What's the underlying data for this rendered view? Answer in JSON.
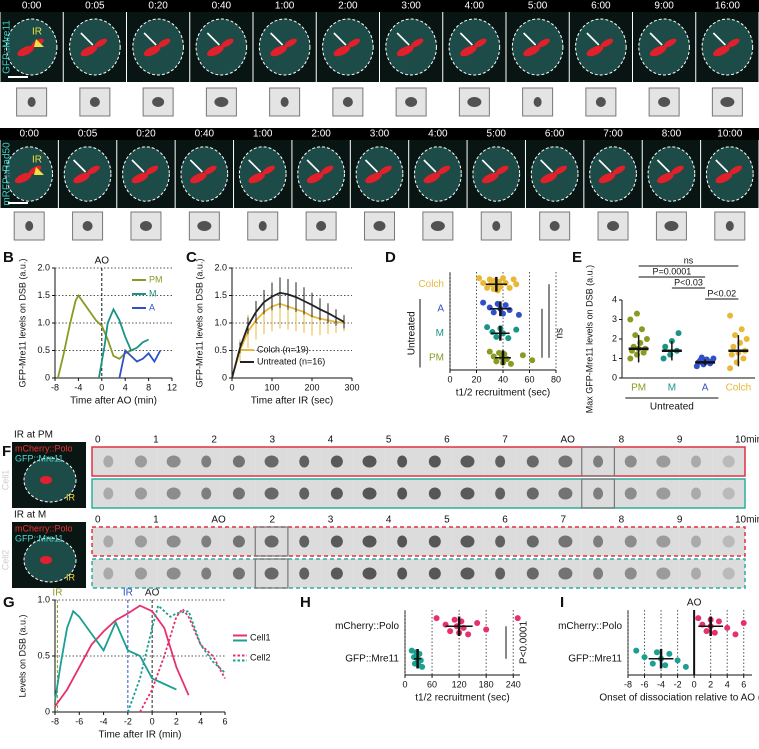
{
  "image_rows": [
    {
      "channel": "GFP::Mre11",
      "annotation": "IR",
      "times": [
        "0:00",
        "0:05",
        "0:20",
        "0:40",
        "1:00",
        "2:00",
        "3:00",
        "4:00",
        "5:00",
        "6:00",
        "9:00",
        "16:00"
      ]
    },
    {
      "channel": "mRFP::Rad50",
      "annotation": "IR",
      "times": [
        "0:00",
        "0:05",
        "0:20",
        "0:40",
        "1:00",
        "2:00",
        "3:00",
        "4:00",
        "5:00",
        "6:00",
        "7:00",
        "8:00",
        "10:00"
      ]
    }
  ],
  "panel_F": {
    "letter": "F",
    "cells": [
      {
        "name": "Cell1",
        "condition": "IR at PM",
        "channels": [
          "mCherry::Polo",
          "GFP::Mre11"
        ],
        "annotation": "IR",
        "timeline": [
          "0",
          "1",
          "2",
          "3",
          "4",
          "5",
          "6",
          "7",
          "AO",
          "8",
          "9",
          "10min"
        ]
      },
      {
        "name": "Cell2",
        "condition": "IR at M",
        "channels": [
          "mCherry::Polo",
          "GFP::Mre11"
        ],
        "annotation": "IR",
        "timeline": [
          "0",
          "1",
          "AO",
          "2",
          "3",
          "4",
          "5",
          "6",
          "7",
          "8",
          "9",
          "10min"
        ]
      }
    ]
  },
  "chart_data": [
    {
      "panel": "B",
      "type": "line",
      "ylabel": "GFP-Mre11 levels on DSB (a.u.)",
      "xlabel": "Time after AO (min)",
      "xlim": [
        -8,
        12
      ],
      "xticks": [
        -8,
        -4,
        0,
        4,
        8,
        12
      ],
      "ylim": [
        0,
        2
      ],
      "yticks": [
        0,
        0.5,
        {
          "value": 1,
          "label": "1.0"
        },
        1.5,
        {
          "value": 2,
          "label": "2.0"
        }
      ],
      "grid": true,
      "legend": "upper right",
      "vline": {
        "x": 0,
        "label": "AO"
      },
      "series": [
        {
          "name": "PM",
          "color": "#8a9a22",
          "x": [
            -7.5,
            -6.5,
            -5.5,
            -4.5,
            -4,
            -3,
            -2,
            -1,
            0,
            1,
            2,
            3,
            4,
            5
          ],
          "values": [
            0,
            0.45,
            0.95,
            1.4,
            1.5,
            1.35,
            1.2,
            1.05,
            0.95,
            0.7,
            0.4,
            0.35,
            0.45,
            0.5
          ]
        },
        {
          "name": "M",
          "color": "#1a9484",
          "x": [
            -0.5,
            0.5,
            1,
            2,
            3,
            4,
            5,
            6,
            7,
            8
          ],
          "values": [
            0,
            0.6,
            1.0,
            1.25,
            1.05,
            0.75,
            0.5,
            0.55,
            0.65,
            0.7
          ]
        },
        {
          "name": "A",
          "color": "#3050c8",
          "x": [
            3,
            4,
            5,
            6,
            7,
            8,
            9,
            10
          ],
          "values": [
            0,
            0.5,
            0.4,
            0.3,
            0.35,
            0.45,
            0.3,
            0.5
          ]
        }
      ]
    },
    {
      "panel": "C",
      "type": "line",
      "ylabel": "GFP-Mre11 levels on DSB (a.u.)",
      "xlabel": "Time after IR (sec)",
      "xlim": [
        0,
        300
      ],
      "xticks": [
        0,
        100,
        200,
        300
      ],
      "ylim": [
        0,
        2
      ],
      "yticks": [
        0,
        0.5,
        {
          "value": 1,
          "label": "1.0"
        },
        1.5,
        {
          "value": 2,
          "label": "2.0"
        }
      ],
      "grid": true,
      "legend": "lower right",
      "series": [
        {
          "name": "Colch (n=19)",
          "color": "#e8b838",
          "x": [
            0,
            20,
            40,
            60,
            80,
            100,
            120,
            140,
            160,
            180,
            200,
            220,
            240,
            260,
            280
          ],
          "values": [
            0,
            0.5,
            0.85,
            1.05,
            1.2,
            1.3,
            1.35,
            1.3,
            1.25,
            1.2,
            1.12,
            1.08,
            1.05,
            1.02,
            1.0
          ],
          "errors": [
            0,
            0.2,
            0.3,
            0.35,
            0.4,
            0.45,
            0.45,
            0.42,
            0.4,
            0.38,
            0.35,
            0.3,
            0.25,
            0.2,
            0.15
          ]
        },
        {
          "name": "Untreated (n=16)",
          "color": "#222222",
          "x": [
            0,
            20,
            40,
            60,
            80,
            100,
            120,
            140,
            160,
            180,
            200,
            220,
            240,
            260,
            280
          ],
          "values": [
            0,
            0.55,
            0.95,
            1.2,
            1.38,
            1.48,
            1.55,
            1.52,
            1.47,
            1.4,
            1.33,
            1.25,
            1.18,
            1.1,
            1.02
          ],
          "errors": [
            0,
            0.1,
            0.15,
            0.2,
            0.22,
            0.25,
            0.28,
            0.28,
            0.27,
            0.25,
            0.22,
            0.2,
            0.18,
            0.15,
            0.12
          ]
        }
      ]
    },
    {
      "panel": "D",
      "type": "strip",
      "orientation": "horizontal",
      "xlabel": "t1/2 recruitment (sec)",
      "xlim": [
        0,
        80
      ],
      "xticks": [
        0,
        20,
        40,
        60,
        80
      ],
      "grid": true,
      "group_label": "Untreated",
      "group_span": [
        1,
        3
      ],
      "annotation": "ns",
      "groups": [
        {
          "name": "Colch",
          "color": "#e8b838",
          "values": [
            22,
            25,
            28,
            30,
            31,
            33,
            34,
            35,
            36,
            37,
            38,
            40,
            42,
            45,
            48,
            50
          ],
          "median": 35,
          "error": 8
        },
        {
          "name": "A",
          "color": "#3050c8",
          "values": [
            25,
            30,
            33,
            36,
            38,
            40,
            42,
            45,
            52
          ],
          "median": 38,
          "error": 8
        },
        {
          "name": "M",
          "color": "#1a9484",
          "values": [
            28,
            32,
            35,
            38,
            40,
            44,
            50
          ],
          "median": 38,
          "error": 7
        },
        {
          "name": "PM",
          "color": "#8a9a22",
          "values": [
            30,
            33,
            35,
            37,
            39,
            40,
            41,
            43,
            46,
            55,
            62
          ],
          "median": 40,
          "error": 6
        }
      ]
    },
    {
      "panel": "E",
      "type": "strip",
      "orientation": "vertical",
      "ylabel": "Max GFP-Mre11 levels on DSB (a.u.)",
      "ylim": [
        0,
        4
      ],
      "yticks": [
        0,
        1,
        2,
        3,
        4
      ],
      "group_label": "Untreated",
      "group_span": [
        0,
        2
      ],
      "brackets": [
        {
          "label": "ns",
          "between": [
            0,
            3
          ]
        },
        {
          "label": "P=0.0001",
          "between": [
            0,
            2
          ]
        },
        {
          "label": "P<0.03",
          "between": [
            1,
            2
          ]
        },
        {
          "label": "P<0.02",
          "between": [
            2,
            3
          ]
        }
      ],
      "groups": [
        {
          "name": "PM",
          "color": "#8a9a22",
          "values": [
            1.0,
            1.2,
            1.3,
            1.4,
            1.5,
            1.5,
            1.6,
            1.8,
            2.0,
            2.2,
            2.5,
            3.0,
            3.3
          ],
          "median": 1.5,
          "error": 0.7
        },
        {
          "name": "M",
          "color": "#1a9484",
          "values": [
            1.0,
            1.2,
            1.4,
            1.6,
            1.9,
            2.3
          ],
          "median": 1.4,
          "error": 0.5
        },
        {
          "name": "A",
          "color": "#3050c8",
          "values": [
            0.6,
            0.7,
            0.75,
            0.8,
            0.8,
            0.85,
            0.9,
            0.95,
            1.0,
            1.05
          ],
          "median": 0.8,
          "error": 0.15
        },
        {
          "name": "Colch",
          "color": "#e8b838",
          "values": [
            0.5,
            0.8,
            1.0,
            1.2,
            1.3,
            1.4,
            1.6,
            1.8,
            2.0,
            2.2,
            2.5,
            3.2
          ],
          "median": 1.4,
          "error": 0.8
        }
      ]
    },
    {
      "panel": "G",
      "type": "line",
      "ylabel": "Levels on DSB (a.u.)",
      "xlabel": "Time after IR (min)",
      "xlim": [
        -8,
        6
      ],
      "xticks": [
        -8,
        -6,
        -4,
        -2,
        0,
        2,
        4,
        6
      ],
      "ylim": [
        0,
        1
      ],
      "yticks": [
        0,
        0.5,
        {
          "value": 1,
          "label": "1.0"
        }
      ],
      "grid": true,
      "legend": "right",
      "vlines": [
        {
          "x": -7.8,
          "label": "IR",
          "color": "#8a9a22"
        },
        {
          "x": -2,
          "label": "IR",
          "color": "#3050c8"
        },
        {
          "x": 0,
          "label": "AO",
          "color": "#222222"
        }
      ],
      "series": [
        {
          "name": "Cell1",
          "dash": false,
          "lines": [
            {
              "color": "#e8306a",
              "x": [
                -8,
                -7,
                -6,
                -5,
                -4,
                -3,
                -2,
                -1,
                0,
                1,
                2,
                3
              ],
              "values": [
                0.05,
                0.2,
                0.4,
                0.6,
                0.72,
                0.82,
                0.88,
                0.95,
                0.9,
                0.75,
                0.4,
                0.15
              ]
            },
            {
              "color": "#1aa090",
              "x": [
                -8,
                -7.5,
                -7,
                -6.5,
                -6,
                -5,
                -4,
                -3,
                -2,
                -1,
                0,
                1,
                2
              ],
              "values": [
                0.1,
                0.45,
                0.75,
                0.9,
                0.85,
                0.7,
                0.55,
                0.8,
                0.55,
                0.5,
                0.3,
                0.25,
                0.2
              ]
            }
          ]
        },
        {
          "name": "Cell2",
          "dash": true,
          "lines": [
            {
              "color": "#e8306a",
              "x": [
                -1,
                0,
                1,
                2,
                2.5,
                3,
                4,
                5,
                6
              ],
              "values": [
                0,
                0.2,
                0.5,
                0.85,
                0.92,
                0.85,
                0.6,
                0.5,
                0.3
              ]
            },
            {
              "color": "#1aa090",
              "x": [
                -2,
                -1,
                0,
                0.5,
                1,
                1.5,
                2,
                3,
                4,
                5,
                6
              ],
              "values": [
                0,
                0.3,
                0.75,
                0.95,
                0.9,
                0.85,
                0.88,
                0.9,
                0.6,
                0.45,
                0.35
              ]
            }
          ]
        }
      ]
    },
    {
      "panel": "H",
      "type": "strip",
      "orientation": "horizontal",
      "xlabel": "t1/2 recruitment (sec)",
      "xlim": [
        0,
        255
      ],
      "xticks": [
        0,
        60,
        120,
        180,
        240
      ],
      "grid": true,
      "annotation": "P<0.0001",
      "groups": [
        {
          "name": "mCherry::Polo",
          "color": "#e8306a",
          "values": [
            70,
            90,
            100,
            110,
            115,
            120,
            125,
            130,
            140,
            160,
            180,
            250
          ],
          "median": 120,
          "error": 30
        },
        {
          "name": "GFP::Mre11",
          "color": "#1aa090",
          "values": [
            15,
            20,
            22,
            25,
            28,
            30,
            32,
            35,
            38
          ],
          "median": 28,
          "error": 8
        }
      ]
    },
    {
      "panel": "I",
      "type": "strip",
      "orientation": "horizontal",
      "xlabel": "Onset of dissociation relative to AO (min)",
      "xlim": [
        -8,
        7
      ],
      "xticks": [
        -8,
        -6,
        -4,
        -2,
        0,
        2,
        4,
        6
      ],
      "grid": true,
      "vline": {
        "x": 0,
        "label": "AO"
      },
      "groups": [
        {
          "name": "mCherry::Polo",
          "color": "#e8306a",
          "values": [
            0.5,
            1,
            1.5,
            2,
            2,
            2.5,
            3,
            4,
            5,
            6
          ],
          "median": 2,
          "error": 1.5
        },
        {
          "name": "GFP::Mre11",
          "color": "#1aa090",
          "values": [
            -7,
            -6,
            -5,
            -4.5,
            -4,
            -3.5,
            -3,
            -2,
            -1
          ],
          "median": -4,
          "error": 1.5
        }
      ]
    }
  ]
}
